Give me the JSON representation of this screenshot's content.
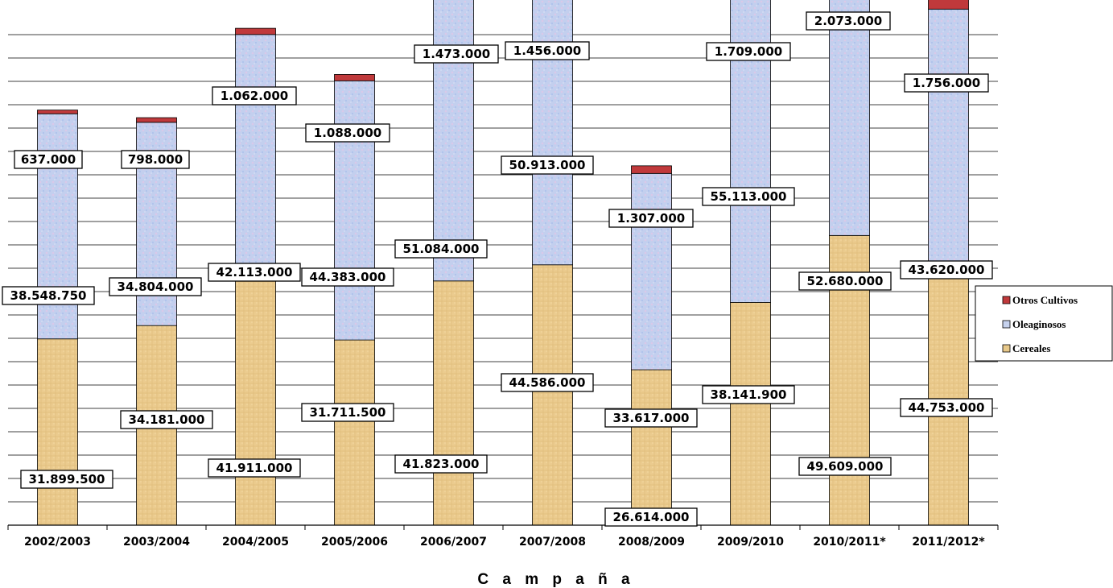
{
  "chart_data": {
    "type": "bar",
    "stacked": true,
    "categories": [
      "2002/2003",
      "2003/2004",
      "2004/2005",
      "2005/2006",
      "2006/2007",
      "2007/2008",
      "2008/2009",
      "2009/2010",
      "2010/2011*",
      "2011/2012*"
    ],
    "series": [
      {
        "name": "Cereales",
        "color": "#E8C98A",
        "values": [
          31899500,
          34181000,
          41911000,
          31711500,
          41823000,
          44586000,
          26614000,
          38141900,
          49609000,
          44753000
        ],
        "labels": [
          "31.899.500",
          "34.181.000",
          "41.911.000",
          "31.711.500",
          "41.823.000",
          "44.586.000",
          "26.614.000",
          "38.141.900",
          "49.609.000",
          "44.753.000"
        ]
      },
      {
        "name": "Oleaginosos",
        "color": "#C6D2EE",
        "values": [
          38548750,
          34804000,
          42113000,
          44383000,
          51084000,
          50913000,
          33617000,
          55113000,
          52680000,
          43620000
        ],
        "labels": [
          "38.548.750",
          "34.804.000",
          "42.113.000",
          "44.383.000",
          "51.084.000",
          "50.913.000",
          "33.617.000",
          "55.113.000",
          "52.680.000",
          "43.620.000"
        ]
      },
      {
        "name": "Otros Cultivos",
        "color": "#C0393B",
        "values": [
          637000,
          798000,
          1062000,
          1088000,
          1473000,
          1456000,
          1307000,
          1709000,
          2073000,
          1756000
        ],
        "labels": [
          "637.000",
          "798.000",
          "1.062.000",
          "1.088.000",
          "1.473.000",
          "1.456.000",
          "1.307.000",
          "1.709.000",
          "2.073.000",
          "1.756.000"
        ]
      }
    ],
    "xlabel": "C a m p a ñ a",
    "ylabel": "",
    "ylim": [
      0,
      112000000
    ],
    "grid": true,
    "legend": "right"
  }
}
